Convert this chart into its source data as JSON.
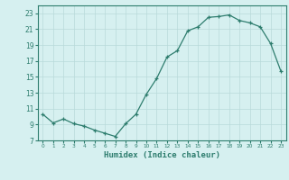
{
  "x": [
    0,
    1,
    2,
    3,
    4,
    5,
    6,
    7,
    8,
    9,
    10,
    11,
    12,
    13,
    14,
    15,
    16,
    17,
    18,
    19,
    20,
    21,
    22,
    23
  ],
  "y": [
    10.3,
    9.2,
    9.7,
    9.1,
    8.8,
    8.3,
    7.9,
    7.5,
    9.1,
    10.3,
    12.8,
    14.8,
    17.5,
    18.3,
    20.8,
    21.3,
    22.5,
    22.6,
    22.8,
    22.1,
    21.8,
    21.3,
    19.2,
    15.7
  ],
  "xlabel": "Humidex (Indice chaleur)",
  "line_color": "#2e7d6e",
  "bg_color": "#d6f0f0",
  "grid_color": "#b8dada",
  "tick_color": "#2e7d6e",
  "ylim": [
    7,
    24
  ],
  "yticks": [
    7,
    9,
    11,
    13,
    15,
    17,
    19,
    21,
    23
  ],
  "xticks": [
    0,
    1,
    2,
    3,
    4,
    5,
    6,
    7,
    8,
    9,
    10,
    11,
    12,
    13,
    14,
    15,
    16,
    17,
    18,
    19,
    20,
    21,
    22,
    23
  ],
  "xlim": [
    -0.5,
    23.5
  ],
  "marker": "+"
}
